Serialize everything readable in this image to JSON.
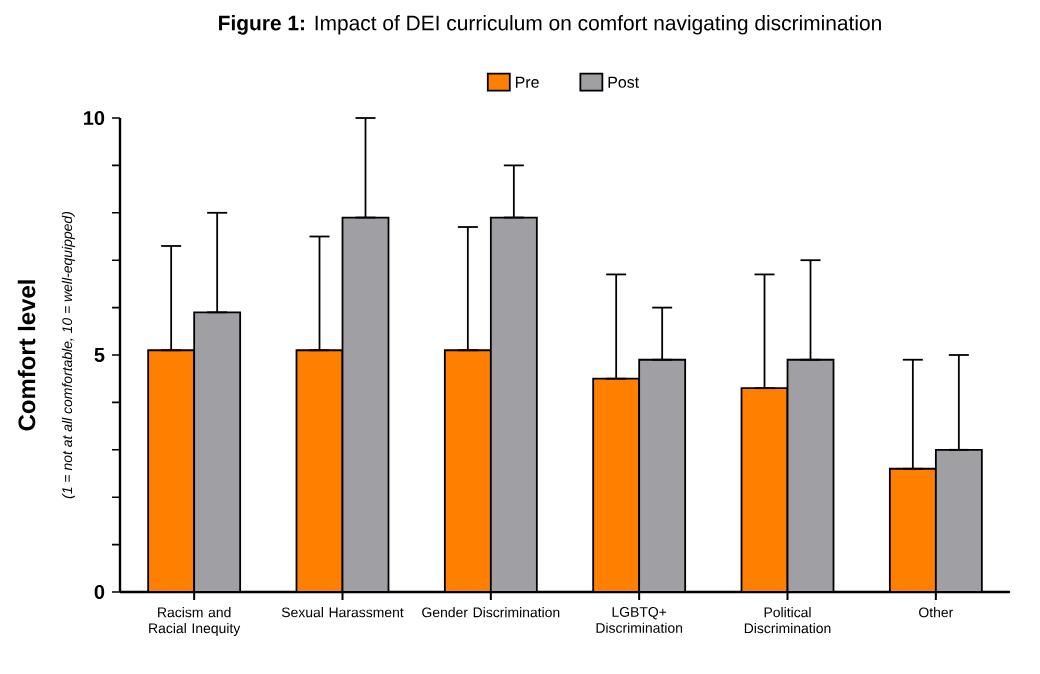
{
  "chart_data": {
    "type": "bar",
    "title": "**Figure 1:** Impact of DEI curriculum on comfort navigating discrimination",
    "ylabel": "Comfort level",
    "annotations": [
      "(1 = not at all comfortable, 10 = well-equipped)"
    ],
    "categories": [
      "Racism and Racial Inequity",
      "Sexual Harassment",
      "Gender Discrimination",
      "LGBTQ+ Discrimination",
      "Political Discrimination",
      "Other"
    ],
    "series": [
      {
        "name": "Pre",
        "color": "#ff7f00",
        "values": [
          5.1,
          5.1,
          5.1,
          4.5,
          4.3,
          2.6
        ],
        "errors": [
          [
            5.1,
            7.3
          ],
          [
            5.1,
            7.5
          ],
          [
            5.1,
            7.7
          ],
          [
            4.5,
            6.7
          ],
          [
            4.3,
            6.7
          ],
          [
            2.6,
            4.9
          ]
        ]
      },
      {
        "name": "Post",
        "color": "#a0a0a4",
        "values": [
          5.9,
          7.9,
          7.9,
          4.9,
          4.9,
          3.0
        ],
        "errors": [
          [
            5.9,
            8.0
          ],
          [
            7.9,
            10.0
          ],
          [
            7.9,
            9.0
          ],
          [
            4.9,
            6.0
          ],
          [
            4.9,
            7.0
          ],
          [
            3.0,
            5.0
          ]
        ]
      }
    ],
    "ylim": [
      0,
      10
    ],
    "yticks": [
      0,
      {
        "value": 1,
        "label": null
      },
      {
        "value": 2,
        "label": null
      },
      {
        "value": 3,
        "label": null
      },
      {
        "value": 4,
        "label": null
      },
      5,
      {
        "value": 6,
        "label": null
      },
      {
        "value": 7,
        "label": null
      },
      {
        "value": 8,
        "label": null
      },
      {
        "value": 9,
        "label": null
      },
      10
    ],
    "legend": "top",
    "grid": false
  }
}
